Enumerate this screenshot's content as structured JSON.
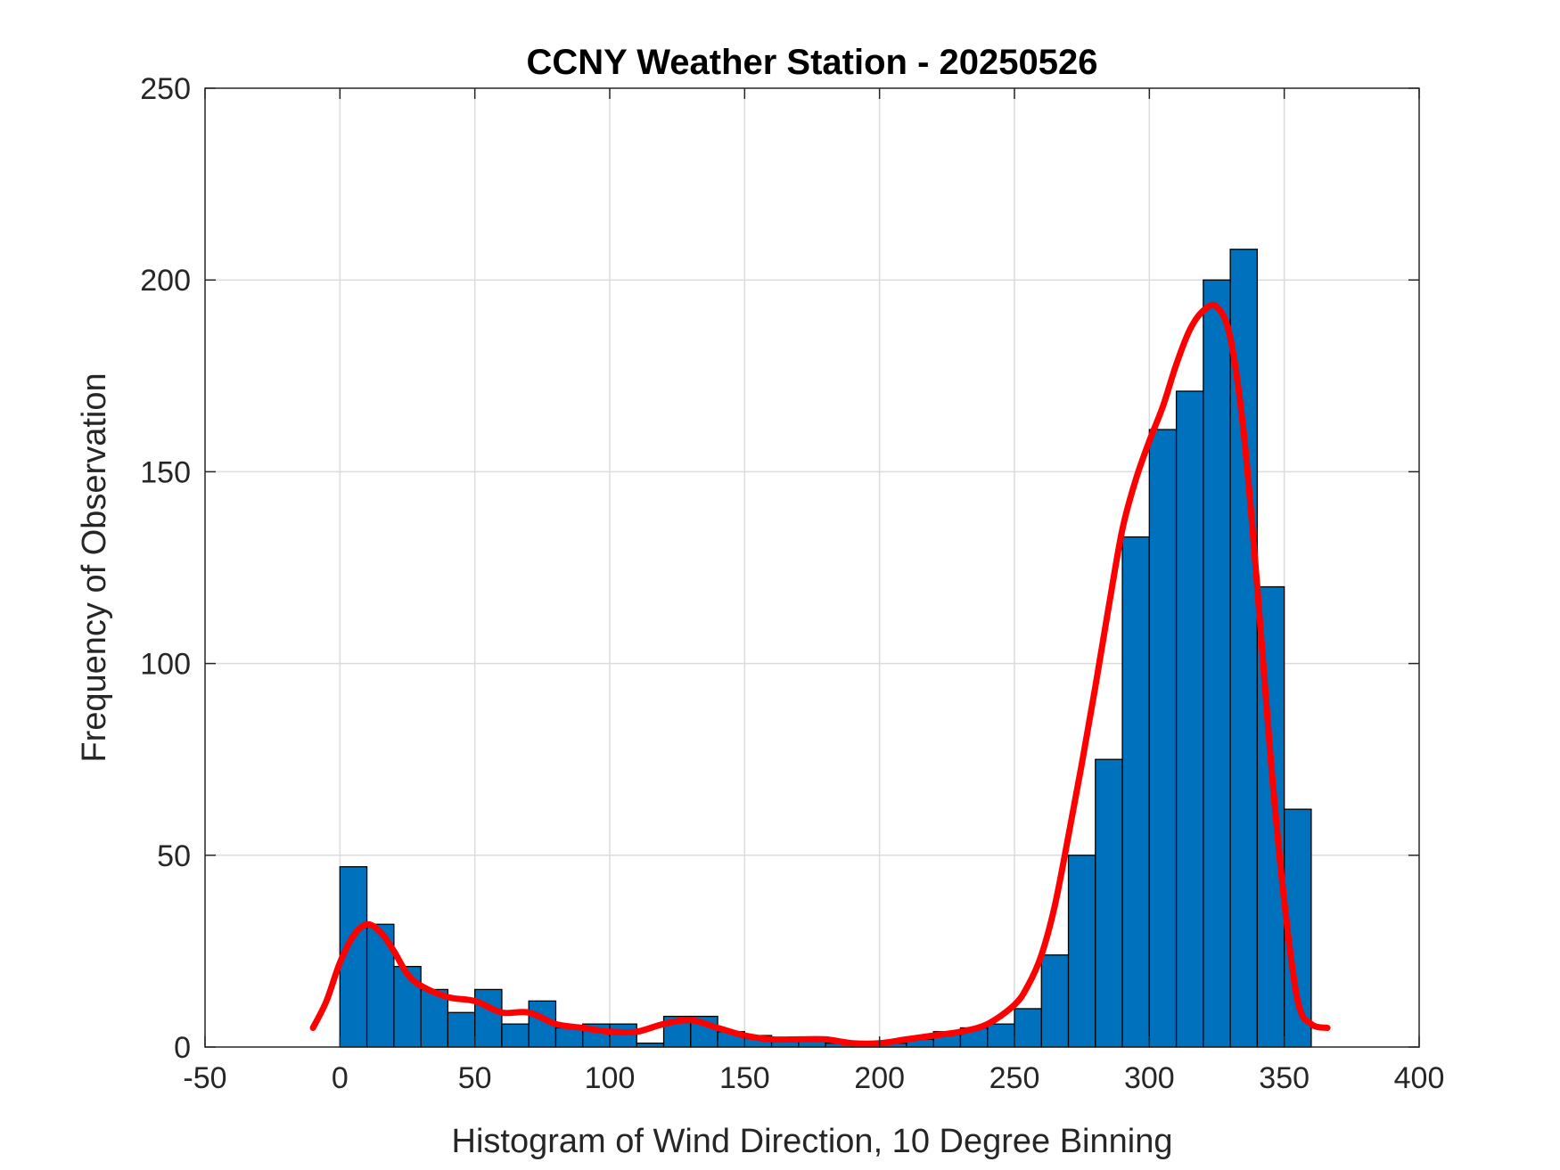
{
  "chart_data": {
    "type": "bar",
    "title": "CCNY Weather Station - 20250526",
    "xlabel": "Histogram of Wind Direction, 10 Degree Binning",
    "ylabel": "Frequency of Observation",
    "xlim": [
      -50,
      400
    ],
    "ylim": [
      0,
      250
    ],
    "xticks": [
      "-50",
      "0",
      "50",
      "100",
      "150",
      "200",
      "250",
      "300",
      "350",
      "400"
    ],
    "yticks": [
      "0",
      "50",
      "100",
      "150",
      "200",
      "250"
    ],
    "grid": true,
    "bin_width": 10,
    "bin_edges_start": [
      0,
      10,
      20,
      30,
      40,
      50,
      60,
      70,
      80,
      90,
      100,
      110,
      120,
      130,
      140,
      150,
      160,
      170,
      180,
      190,
      200,
      210,
      220,
      230,
      240,
      250,
      260,
      270,
      280,
      290,
      300,
      310,
      320,
      330,
      340,
      350
    ],
    "values": [
      47,
      32,
      21,
      15,
      9,
      15,
      6,
      12,
      5,
      6,
      6,
      1,
      8,
      8,
      4,
      3,
      2,
      2,
      1,
      1,
      1,
      2,
      4,
      5,
      6,
      10,
      24,
      50,
      75,
      133,
      161,
      171,
      200,
      208,
      120,
      62
    ],
    "bar_color": "#0072BD",
    "bar_edge_color": "#000000",
    "curve": {
      "color": "#FF0000",
      "x": [
        -10,
        -5,
        0,
        5,
        10,
        15,
        20,
        25,
        30,
        40,
        50,
        60,
        70,
        80,
        90,
        100,
        110,
        120,
        130,
        140,
        150,
        160,
        170,
        180,
        190,
        200,
        210,
        220,
        230,
        240,
        250,
        255,
        260,
        265,
        270,
        275,
        280,
        285,
        290,
        295,
        300,
        305,
        310,
        315,
        320,
        325,
        330,
        335,
        340,
        345,
        350,
        355,
        360,
        366
      ],
      "y": [
        5,
        12,
        22,
        29,
        32,
        30,
        25,
        19,
        16,
        13,
        12,
        9,
        9,
        6,
        5,
        4,
        4,
        6,
        7,
        5,
        3,
        2,
        2,
        2,
        1,
        1,
        2,
        3,
        4,
        6,
        11,
        16,
        24,
        37,
        55,
        74,
        94,
        115,
        135,
        148,
        158,
        167,
        178,
        187,
        192,
        193,
        185,
        160,
        120,
        75,
        38,
        12,
        6,
        5
      ]
    }
  }
}
